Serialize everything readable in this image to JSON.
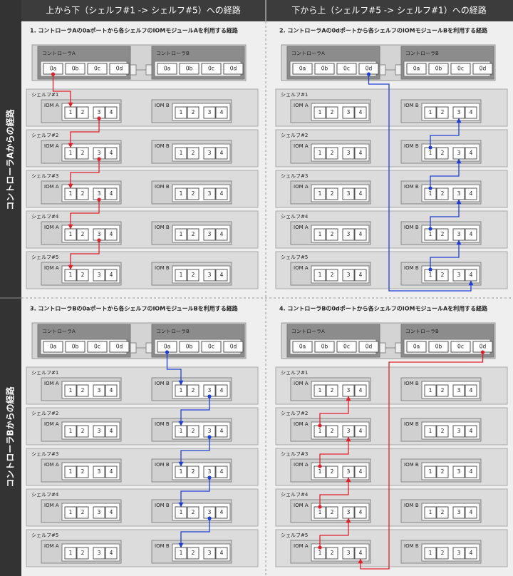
{
  "header": {
    "columns": [
      "上から下（シェルフ#1 -> シェルフ#5）への経路",
      "下から上（シェルフ#5 -> シェルフ#1）への経路"
    ]
  },
  "side_labels": [
    "コントローラAからの経路",
    "コントローラBからの経路"
  ],
  "panels": [
    {
      "title": "1. コントローラAの0aポートから各シェルフのIOMモジュールAを利用する経路",
      "controllers": [
        {
          "label": "コントローラA",
          "ports": [
            "0a",
            "0b",
            "0c",
            "0d"
          ]
        },
        {
          "label": "コントローラB",
          "ports": [
            "0a",
            "0b",
            "0c",
            "0d"
          ]
        }
      ],
      "shelves": [
        {
          "label": "シェルフ#1",
          "modules": [
            {
              "label": "IOM A",
              "ports": [
                "1",
                "2",
                "3",
                "4"
              ]
            },
            {
              "label": "IOM B",
              "ports": [
                "1",
                "2",
                "3",
                "4"
              ]
            }
          ]
        },
        {
          "label": "シェルフ#2",
          "modules": [
            {
              "label": "IOM A",
              "ports": [
                "1",
                "2",
                "3",
                "4"
              ]
            },
            {
              "label": "IOM B",
              "ports": [
                "1",
                "2",
                "3",
                "4"
              ]
            }
          ]
        },
        {
          "label": "シェルフ#3",
          "modules": [
            {
              "label": "IOM A",
              "ports": [
                "1",
                "2",
                "3",
                "4"
              ]
            },
            {
              "label": "IOM B",
              "ports": [
                "1",
                "2",
                "3",
                "4"
              ]
            }
          ]
        },
        {
          "label": "シェルフ#4",
          "modules": [
            {
              "label": "IOM A",
              "ports": [
                "1",
                "2",
                "3",
                "4"
              ]
            },
            {
              "label": "IOM B",
              "ports": [
                "1",
                "2",
                "3",
                "4"
              ]
            }
          ]
        },
        {
          "label": "シェルフ#5",
          "modules": [
            {
              "label": "IOM A",
              "ports": [
                "1",
                "2",
                "3",
                "4"
              ]
            },
            {
              "label": "IOM B",
              "ports": [
                "1",
                "2",
                "3",
                "4"
              ]
            }
          ]
        }
      ]
    },
    {
      "title": "2. コントローラAの0dポートから各シェルフのIOMモジュールBを利用する経路",
      "controllers": [
        {
          "label": "コントローラA",
          "ports": [
            "0a",
            "0b",
            "0c",
            "0d"
          ]
        },
        {
          "label": "コントローラB",
          "ports": [
            "0a",
            "0b",
            "0c",
            "0d"
          ]
        }
      ],
      "shelves": [
        {
          "label": "シェルフ#1",
          "modules": [
            {
              "label": "IOM A",
              "ports": [
                "1",
                "2",
                "3",
                "4"
              ]
            },
            {
              "label": "IOM B",
              "ports": [
                "1",
                "2",
                "3",
                "4"
              ]
            }
          ]
        },
        {
          "label": "シェルフ#2",
          "modules": [
            {
              "label": "IOM A",
              "ports": [
                "1",
                "2",
                "3",
                "4"
              ]
            },
            {
              "label": "IOM B",
              "ports": [
                "1",
                "2",
                "3",
                "4"
              ]
            }
          ]
        },
        {
          "label": "シェルフ#3",
          "modules": [
            {
              "label": "IOM A",
              "ports": [
                "1",
                "2",
                "3",
                "4"
              ]
            },
            {
              "label": "IOM B",
              "ports": [
                "1",
                "2",
                "3",
                "4"
              ]
            }
          ]
        },
        {
          "label": "シェルフ#4",
          "modules": [
            {
              "label": "IOM A",
              "ports": [
                "1",
                "2",
                "3",
                "4"
              ]
            },
            {
              "label": "IOM B",
              "ports": [
                "1",
                "2",
                "3",
                "4"
              ]
            }
          ]
        },
        {
          "label": "シェルフ#5",
          "modules": [
            {
              "label": "IOM A",
              "ports": [
                "1",
                "2",
                "3",
                "4"
              ]
            },
            {
              "label": "IOM B",
              "ports": [
                "1",
                "2",
                "3",
                "4"
              ]
            }
          ]
        }
      ]
    },
    {
      "title": "3. コントローラBの0aポートから各シェルフのIOMモジュールBを利用する経路",
      "controllers": [
        {
          "label": "コントローラA",
          "ports": [
            "0a",
            "0b",
            "0c",
            "0d"
          ]
        },
        {
          "label": "コントローラB",
          "ports": [
            "0a",
            "0b",
            "0c",
            "0d"
          ]
        }
      ],
      "shelves": [
        {
          "label": "シェルフ#1",
          "modules": [
            {
              "label": "IOM A",
              "ports": [
                "1",
                "2",
                "3",
                "4"
              ]
            },
            {
              "label": "IOM B",
              "ports": [
                "1",
                "2",
                "3",
                "4"
              ]
            }
          ]
        },
        {
          "label": "シェルフ#2",
          "modules": [
            {
              "label": "IOM A",
              "ports": [
                "1",
                "2",
                "3",
                "4"
              ]
            },
            {
              "label": "IOM B",
              "ports": [
                "1",
                "2",
                "3",
                "4"
              ]
            }
          ]
        },
        {
          "label": "シェルフ#3",
          "modules": [
            {
              "label": "IOM A",
              "ports": [
                "1",
                "2",
                "3",
                "4"
              ]
            },
            {
              "label": "IOM B",
              "ports": [
                "1",
                "2",
                "3",
                "4"
              ]
            }
          ]
        },
        {
          "label": "シェルフ#4",
          "modules": [
            {
              "label": "IOM A",
              "ports": [
                "1",
                "2",
                "3",
                "4"
              ]
            },
            {
              "label": "IOM B",
              "ports": [
                "1",
                "2",
                "3",
                "4"
              ]
            }
          ]
        },
        {
          "label": "シェルフ#5",
          "modules": [
            {
              "label": "IOM A",
              "ports": [
                "1",
                "2",
                "3",
                "4"
              ]
            },
            {
              "label": "IOM B",
              "ports": [
                "1",
                "2",
                "3",
                "4"
              ]
            }
          ]
        }
      ]
    },
    {
      "title": "4. コントローラBの0dポートから各シェルフのIOMモジュールAを利用する経路",
      "controllers": [
        {
          "label": "コントローラA",
          "ports": [
            "0a",
            "0b",
            "0c",
            "0d"
          ]
        },
        {
          "label": "コントローラB",
          "ports": [
            "0a",
            "0b",
            "0c",
            "0d"
          ]
        }
      ],
      "shelves": [
        {
          "label": "シェルフ#1",
          "modules": [
            {
              "label": "IOM A",
              "ports": [
                "1",
                "2",
                "3",
                "4"
              ]
            },
            {
              "label": "IOM B",
              "ports": [
                "1",
                "2",
                "3",
                "4"
              ]
            }
          ]
        },
        {
          "label": "シェルフ#2",
          "modules": [
            {
              "label": "IOM A",
              "ports": [
                "1",
                "2",
                "3",
                "4"
              ]
            },
            {
              "label": "IOM B",
              "ports": [
                "1",
                "2",
                "3",
                "4"
              ]
            }
          ]
        },
        {
          "label": "シェルフ#3",
          "modules": [
            {
              "label": "IOM A",
              "ports": [
                "1",
                "2",
                "3",
                "4"
              ]
            },
            {
              "label": "IOM B",
              "ports": [
                "1",
                "2",
                "3",
                "4"
              ]
            }
          ]
        },
        {
          "label": "シェルフ#4",
          "modules": [
            {
              "label": "IOM A",
              "ports": [
                "1",
                "2",
                "3",
                "4"
              ]
            },
            {
              "label": "IOM B",
              "ports": [
                "1",
                "2",
                "3",
                "4"
              ]
            }
          ]
        },
        {
          "label": "シェルフ#5",
          "modules": [
            {
              "label": "IOM A",
              "ports": [
                "1",
                "2",
                "3",
                "4"
              ]
            },
            {
              "label": "IOM B",
              "ports": [
                "1",
                "2",
                "3",
                "4"
              ]
            }
          ]
        }
      ]
    }
  ]
}
